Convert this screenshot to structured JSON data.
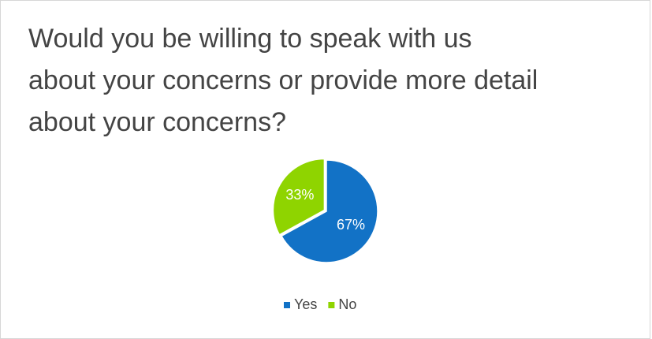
{
  "chart_data": {
    "type": "pie",
    "title": "Would you be willing to speak with us about your concerns or provide more detail about your concerns?",
    "categories": [
      "Yes",
      "No"
    ],
    "values": [
      67,
      33
    ],
    "value_labels": [
      "67%",
      "33%"
    ],
    "colors": [
      "#1272c6",
      "#8fd400"
    ],
    "legend": "bottom"
  }
}
